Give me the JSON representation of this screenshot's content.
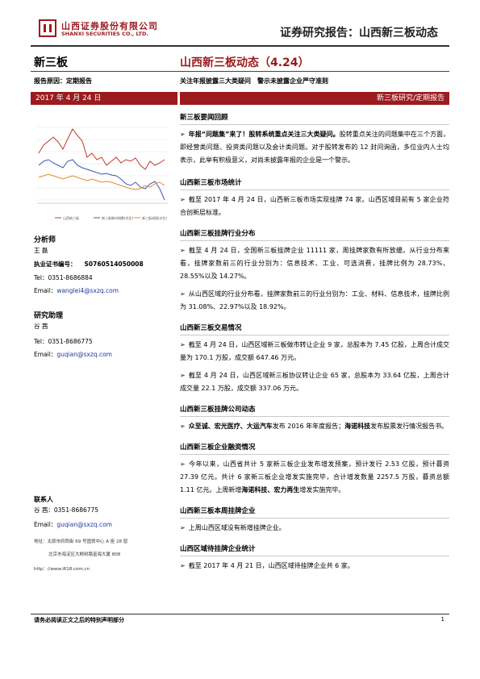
{
  "header": {
    "company_cn": "山西证券股份有限公司",
    "company_en": "SHANXI SECURITIES CO., LTD.",
    "report_type": "证券研究报告：山西新三板动态"
  },
  "left": {
    "category": "新三板",
    "report_reason": "报告原因：定期报告",
    "date_banner": "2017 年 4 月 24 日",
    "chart": {
      "legend": [
        "山西新三板",
        "新三板做市指数(对比)",
        "新三板成指(对比)"
      ]
    },
    "analyst": {
      "heading": "分析师",
      "name": "王 磊",
      "cert_label": "执业证书编号：",
      "cert_no": "S0760514050008",
      "tel": "Tel：0351-8686884",
      "email_label": "Email：",
      "email": "wanglei4@sxzq.com"
    },
    "assistant": {
      "heading": "研究助理",
      "name": "谷 茜",
      "tel": "Tel：0351-8686775",
      "email_label": "Email：",
      "email": "guqian@sxzq.com"
    },
    "contact": {
      "heading": "联系人",
      "tel": "谷 茜：0351-8686775",
      "email_label": "Email：",
      "email": "guqian@sxzq.com",
      "addr1": "地址：太原市府西街 69 号国贸中心 A 座 28 层",
      "addr2": "北京市海淀区大柳树路富海大厦 808",
      "url": "http：//www.i618.com.cn"
    }
  },
  "right": {
    "title": "山西新三板动态（4.24）",
    "subtitle": "关注年报披露三大类疑问　警示未披露企业严守准则",
    "banner": "新三板研究/定期报告",
    "sections": [
      {
        "title": "新三板要闻回顾",
        "bullets": [
          {
            "lead": "年报“问题集”来了！",
            "lead2": "股转系统重点关注三大类疑问。",
            "text": "股转重点关注的问题集中在三个方面，即经营类问题、投资类问题以及会计类问题。对于股转发布的 12 封问询函，多位业内人士均表示，此举有积极意义，对尚未披露年报的企业是一个警示。"
          }
        ]
      },
      {
        "title": "山西新三板市场统计",
        "bullets": [
          {
            "text": "截至 2017 年 4 月 24 日，山西新三板市场实现挂牌 74 家。山西区域目前有 5 家企业符合创新层标准。"
          }
        ]
      },
      {
        "title": "山西新三板挂牌行业分布",
        "bullets": [
          {
            "text": "截至 4 月 24 日，全国新三板挂牌企业 11111 家，周挂牌家数有所放缓。从行业分布来看，挂牌家数前三的行业分别为：信息技术、工业、可选消费，挂牌比例为 28.73%、28.55%以及 14.27%。"
          },
          {
            "text": "从山西区域的行业分布看，挂牌家数前三的行业分别为：工业、材料、信息技术，挂牌比例为 31.08%、22.97%以及 18.92%。"
          }
        ]
      },
      {
        "title": "山西新三板交易情况",
        "bullets": [
          {
            "text": "截至 4 月 24 日，山西区域新三板做市转让企业 9 家，总股本为 7.45 亿股，上周合计成交量为 170.1 万股，成交额 647.46 万元。"
          },
          {
            "text": "截至 4 月 24 日，山西区域新三板协议转让企业 65 家，总股本为 33.64 亿股，上周合计成交量 22.1 万股，成交额 337.06 万元。"
          }
        ]
      },
      {
        "title": "山西新三板挂牌公司动态",
        "bullets": [
          {
            "lead": "众至诚、宏光医疗、大运汽车",
            "mid": "发布 2016 年年度报告；",
            "lead2": "海诺科技",
            "text": "发布股票发行情况报告书。"
          }
        ]
      },
      {
        "title": "山西新三板企业融资情况",
        "bullets": [
          {
            "text": "今年以来，山西省共计 5 家新三板企业发布增发预案，预计发行 2.53 亿股，预计募资 27.39 亿元。共计 6 家新三板企业增发实施完毕，合计增发数量 2257.5 万股，募资总额 1.11 亿元。上周新增",
            "lead2": "海诺科技、宏力再生",
            "tail": "增发实施完毕。"
          }
        ]
      },
      {
        "title": "山西新三板本周挂牌企业",
        "bullets": [
          {
            "text": "上周山西区域没有新增挂牌企业。"
          }
        ]
      },
      {
        "title": "山西区域待挂牌企业统计",
        "bullets": [
          {
            "text": "截至 2017 年 4 月 21 日，山西区域待挂牌企业共 6 家。"
          }
        ]
      }
    ]
  },
  "footer": {
    "disclaimer": "请务必阅读正文之后的特别声明部分",
    "page": "1"
  },
  "colors": {
    "brand": "#9b1b1f",
    "link": "#1f3a9b"
  }
}
